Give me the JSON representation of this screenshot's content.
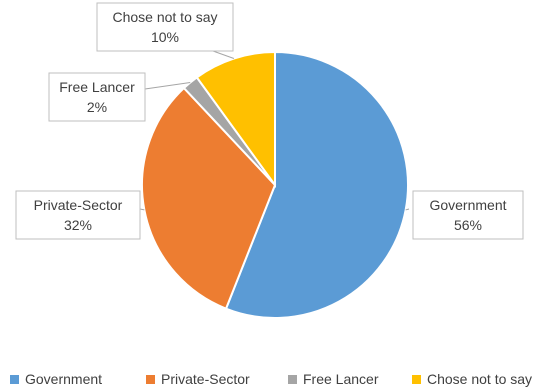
{
  "chart_data": {
    "type": "pie",
    "title": "",
    "slices": [
      {
        "label": "Government",
        "value": 56,
        "display": "56%",
        "color": "#5B9BD5"
      },
      {
        "label": "Private-Sector",
        "value": 32,
        "display": "32%",
        "color": "#ED7D31"
      },
      {
        "label": "Free Lancer",
        "value": 2,
        "display": "2%",
        "color": "#A5A5A5"
      },
      {
        "label": "Chose not to say",
        "value": 10,
        "display": "10%",
        "color": "#FFC000"
      }
    ],
    "legend_position": "bottom",
    "data_labels": "callouts with category name and percentage"
  }
}
